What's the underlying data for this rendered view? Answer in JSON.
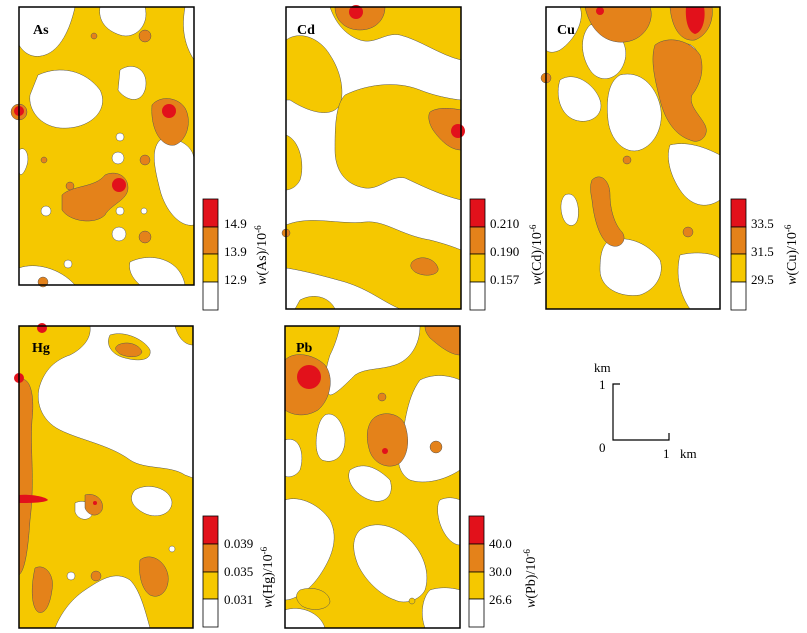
{
  "colors": {
    "background": "#ffffff",
    "level1": "#f5c800",
    "level2": "#e4821a",
    "level3": "#e2111b",
    "outline": "#000000"
  },
  "panels": [
    {
      "id": "as",
      "title": "As",
      "legend": {
        "ticks": [
          "14.9",
          "13.9",
          "12.9"
        ],
        "unit_prefix": "w",
        "unit_rest": "(As)/10",
        "unit_exp": "-6"
      }
    },
    {
      "id": "cd",
      "title": "Cd",
      "legend": {
        "ticks": [
          "0.210",
          "0.190",
          "0.157"
        ],
        "unit_prefix": "w",
        "unit_rest": "(Cd)/10",
        "unit_exp": "-6"
      }
    },
    {
      "id": "cu",
      "title": "Cu",
      "legend": {
        "ticks": [
          "33.5",
          "31.5",
          "29.5"
        ],
        "unit_prefix": "w",
        "unit_rest": "(Cu)/10",
        "unit_exp": "-6"
      }
    },
    {
      "id": "hg",
      "title": "Hg",
      "legend": {
        "ticks": [
          "0.039",
          "0.035",
          "0.031"
        ],
        "unit_prefix": "w",
        "unit_rest": "(Hg)/10",
        "unit_exp": "-6"
      }
    },
    {
      "id": "pb",
      "title": "Pb",
      "legend": {
        "ticks": [
          "40.0",
          "30.0",
          "26.6"
        ],
        "unit_prefix": "w",
        "unit_rest": "(Pb)/10",
        "unit_exp": "-6"
      }
    }
  ],
  "scale_bar": {
    "unit_label": "km",
    "y_tick": "1",
    "origin": "0",
    "x_tick": "1",
    "x_unit": "km"
  }
}
